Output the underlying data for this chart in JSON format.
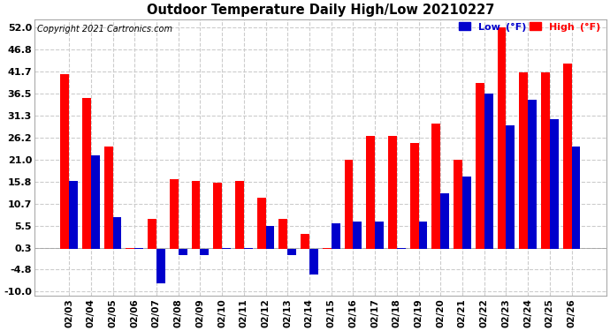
{
  "title": "Outdoor Temperature Daily High/Low 20210227",
  "copyright": "Copyright 2021 Cartronics.com",
  "dates": [
    "02/03",
    "02/04",
    "02/05",
    "02/06",
    "02/07",
    "02/08",
    "02/09",
    "02/10",
    "02/11",
    "02/12",
    "02/13",
    "02/14",
    "02/15",
    "02/16",
    "02/17",
    "02/18",
    "02/19",
    "02/20",
    "02/21",
    "02/22",
    "02/23",
    "02/24",
    "02/25",
    "02/26"
  ],
  "highs": [
    41.0,
    35.5,
    24.0,
    0.3,
    7.0,
    16.5,
    16.0,
    15.5,
    16.0,
    12.0,
    7.0,
    3.5,
    0.3,
    21.0,
    26.5,
    26.5,
    25.0,
    29.5,
    21.0,
    39.0,
    52.0,
    41.5,
    41.5,
    43.5
  ],
  "lows": [
    16.0,
    22.0,
    7.5,
    0.3,
    -8.0,
    -1.5,
    -1.5,
    0.3,
    0.3,
    5.5,
    -1.5,
    -6.0,
    6.0,
    6.5,
    6.5,
    0.3,
    6.5,
    13.0,
    17.0,
    36.5,
    29.0,
    35.0,
    30.5,
    24.0
  ],
  "high_color": "#ff0000",
  "low_color": "#0000cc",
  "bg_color": "#ffffff",
  "plot_bg_color": "#ffffff",
  "grid_color": "#cccccc",
  "yticks": [
    -10.0,
    -4.8,
    0.3,
    5.5,
    10.7,
    15.8,
    21.0,
    26.2,
    31.3,
    36.5,
    41.7,
    46.8,
    52.0
  ],
  "ylim": [
    -11.0,
    54.0
  ],
  "bar_width": 0.4,
  "legend_low_label": "Low  (°F)",
  "legend_high_label": "High  (°F)"
}
